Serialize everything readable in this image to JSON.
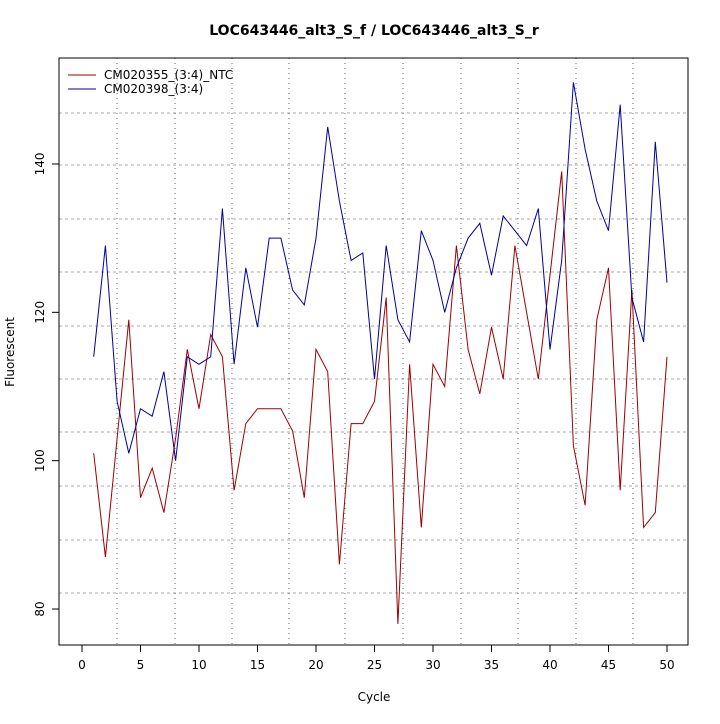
{
  "chart_data": {
    "type": "line",
    "title": "LOC643446_alt3_S_f / LOC643446_alt3_S_r",
    "xlabel": "Cycle",
    "ylabel": "Fluorescent",
    "xlim": [
      -2,
      52
    ],
    "ylim": [
      75,
      154
    ],
    "xticks": [
      0,
      5,
      10,
      15,
      20,
      25,
      30,
      35,
      40,
      45,
      50
    ],
    "yticks": [
      80,
      100,
      120,
      140
    ],
    "grid": true,
    "legend_position": "top-left",
    "x": [
      1,
      2,
      3,
      4,
      5,
      6,
      7,
      8,
      9,
      10,
      11,
      12,
      13,
      14,
      15,
      16,
      17,
      18,
      19,
      20,
      21,
      22,
      23,
      24,
      25,
      26,
      27,
      28,
      29,
      30,
      31,
      32,
      33,
      34,
      35,
      36,
      37,
      38,
      39,
      40,
      41,
      42,
      43,
      44,
      45,
      46,
      47,
      48,
      49,
      50
    ],
    "series": [
      {
        "name": "CM020355_(3:4)_NTC",
        "color": "#9b0000",
        "values": [
          101,
          87,
          103,
          119,
          95,
          99,
          93,
          103,
          115,
          107,
          117,
          114,
          96,
          105,
          107,
          107,
          107,
          104,
          95,
          115,
          112,
          86,
          105,
          105,
          108,
          122,
          78,
          113,
          91,
          113,
          110,
          129,
          115,
          109,
          118,
          111,
          129,
          120,
          111,
          125,
          139,
          102,
          94,
          119,
          126,
          96,
          123,
          91,
          93,
          114
        ]
      },
      {
        "name": "CM020398_(3:4)",
        "color": "#00009b",
        "values": [
          114,
          129,
          108,
          101,
          107,
          106,
          112,
          100,
          114,
          113,
          114,
          134,
          113,
          126,
          118,
          130,
          130,
          123,
          121,
          130,
          145,
          135,
          127,
          128,
          111,
          129,
          119,
          116,
          131,
          127,
          120,
          126,
          130,
          132,
          125,
          133,
          131,
          129,
          134,
          115,
          127,
          151,
          142,
          135,
          131,
          148,
          122,
          116,
          143,
          124
        ]
      }
    ]
  }
}
